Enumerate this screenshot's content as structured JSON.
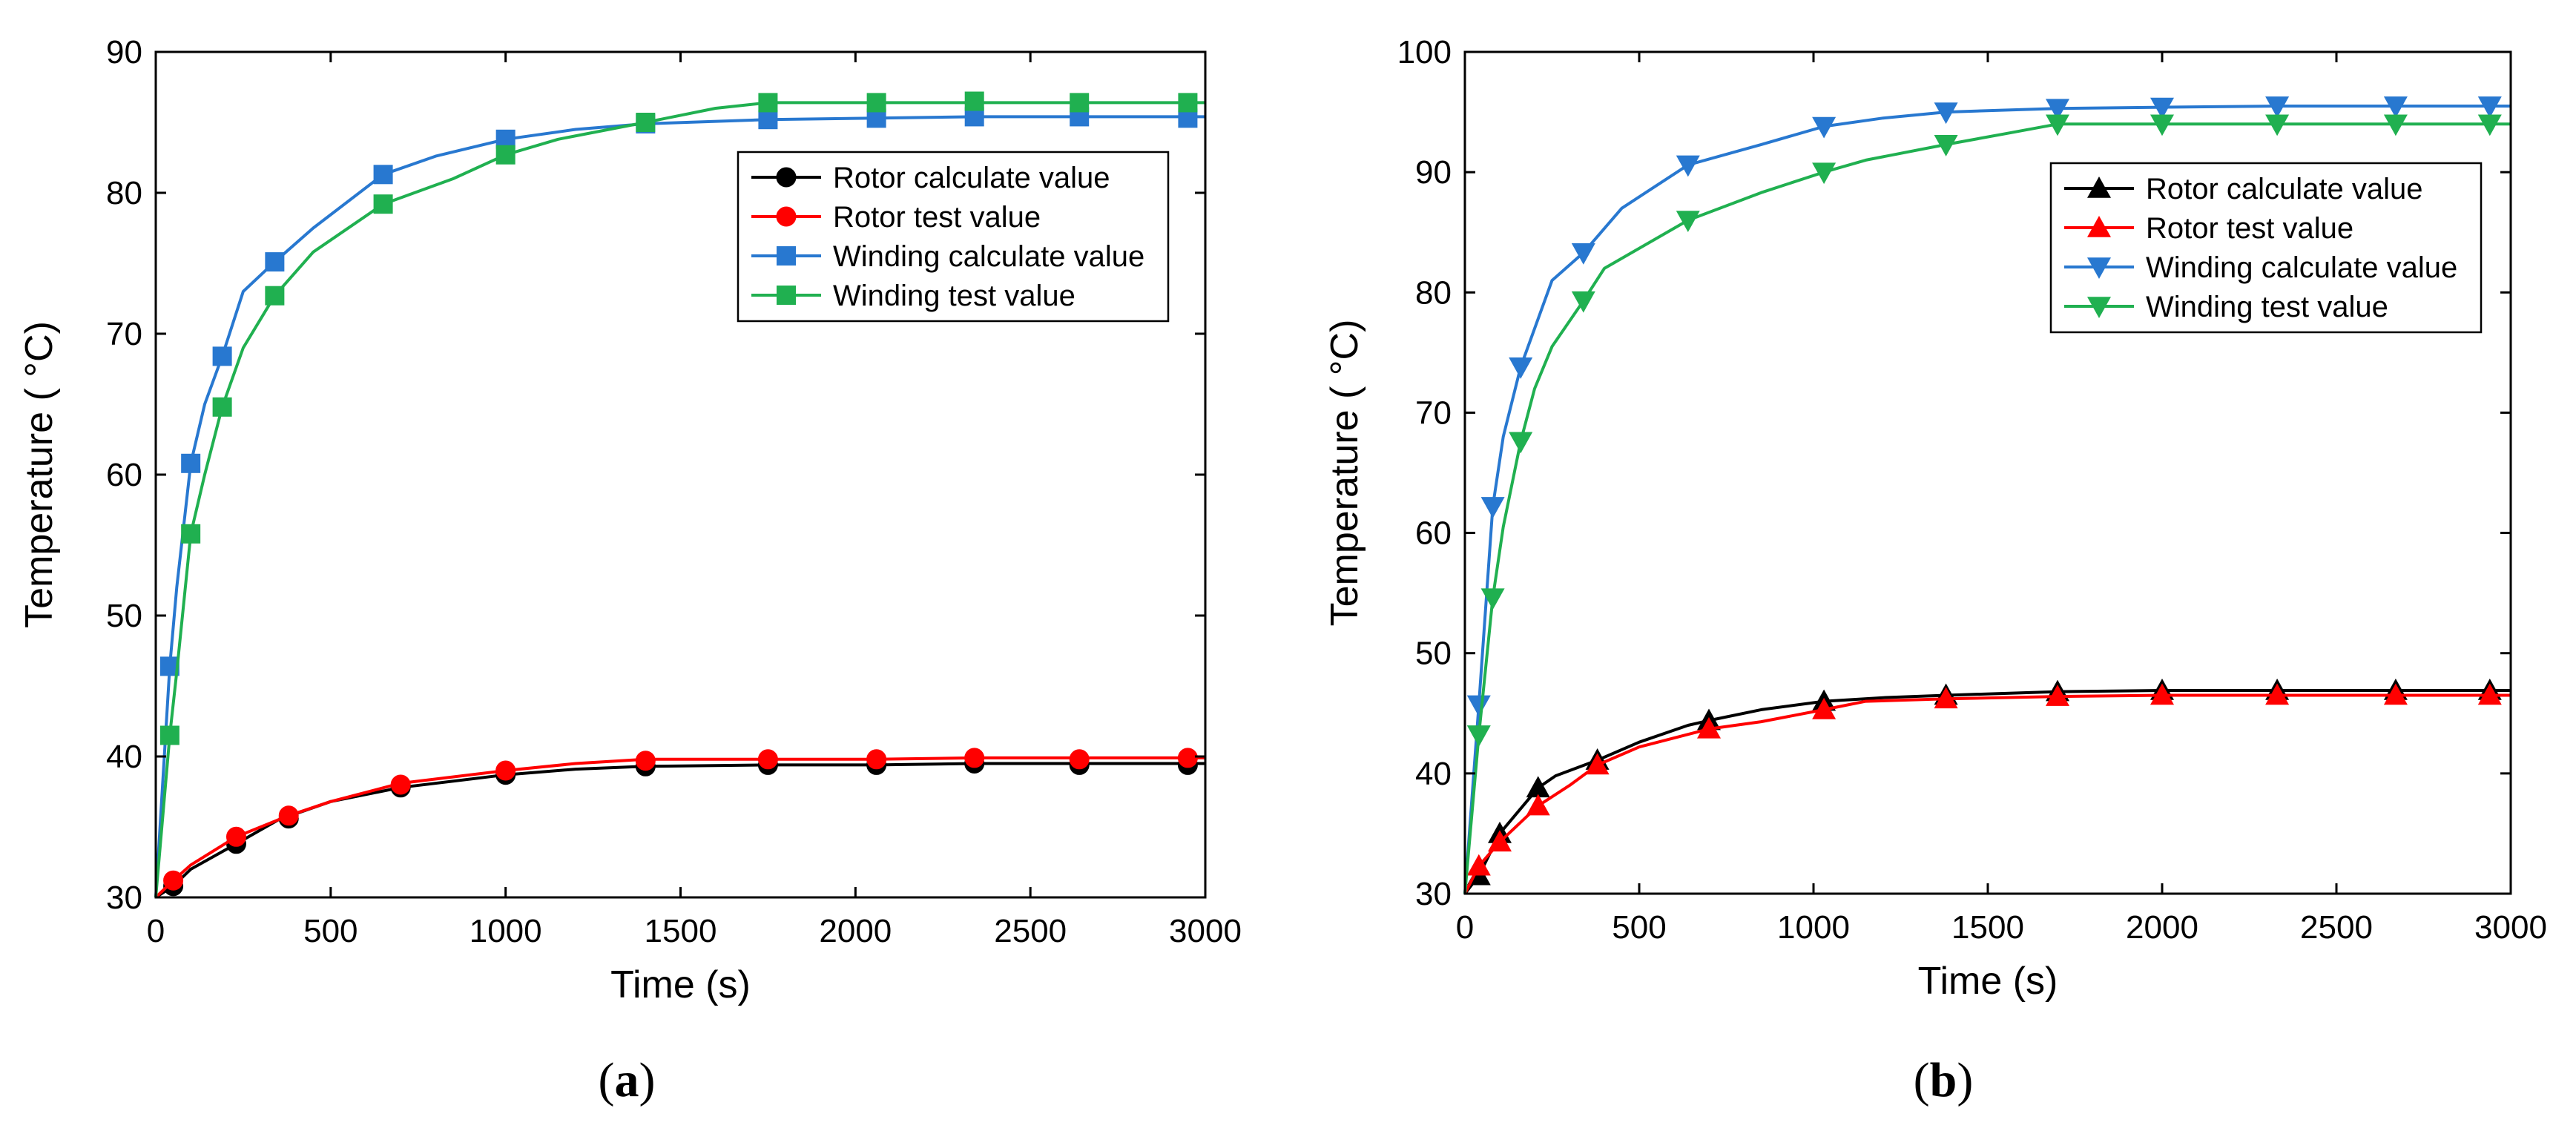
{
  "chart_data": [
    {
      "id": "a",
      "type": "line",
      "panel_label": {
        "open": "(",
        "letter": "a",
        "close": ")"
      },
      "xlabel": "Time (s)",
      "ylabel": "Temperature (  °C)",
      "xlim": [
        0,
        3000
      ],
      "ylim": [
        30,
        90
      ],
      "xticks": [
        0,
        500,
        1000,
        1500,
        2000,
        2500,
        3000
      ],
      "yticks": [
        30,
        40,
        50,
        60,
        70,
        80,
        90
      ],
      "grid": false,
      "legend_position": "top-right",
      "series": [
        {
          "name": "Rotor calculate value",
          "color": "#000000",
          "marker": "circle",
          "line": [
            [
              0,
              30
            ],
            [
              50,
              30.8
            ],
            [
              100,
              32.0
            ],
            [
              230,
              33.8
            ],
            [
              350,
              35.5
            ],
            [
              500,
              36.8
            ],
            [
              700,
              37.8
            ],
            [
              1000,
              38.7
            ],
            [
              1200,
              39.1
            ],
            [
              1400,
              39.3
            ],
            [
              1750,
              39.4
            ],
            [
              2060,
              39.4
            ],
            [
              2340,
              39.5
            ],
            [
              2640,
              39.5
            ],
            [
              3000,
              39.5
            ]
          ],
          "markers": [
            [
              50,
              30.8
            ],
            [
              230,
              33.8
            ],
            [
              380,
              35.6
            ],
            [
              700,
              37.8
            ],
            [
              1000,
              38.7
            ],
            [
              1400,
              39.3
            ],
            [
              1750,
              39.4
            ],
            [
              2060,
              39.4
            ],
            [
              2340,
              39.5
            ],
            [
              2640,
              39.4
            ],
            [
              2950,
              39.4
            ]
          ]
        },
        {
          "name": "Rotor test value",
          "color": "#ff0000",
          "marker": "circle",
          "line": [
            [
              0,
              30
            ],
            [
              50,
              31.2
            ],
            [
              100,
              32.3
            ],
            [
              230,
              34.3
            ],
            [
              380,
              35.8
            ],
            [
              500,
              36.8
            ],
            [
              700,
              38.1
            ],
            [
              1000,
              39.0
            ],
            [
              1200,
              39.5
            ],
            [
              1400,
              39.8
            ],
            [
              1750,
              39.8
            ],
            [
              2060,
              39.8
            ],
            [
              2340,
              39.9
            ],
            [
              2640,
              39.9
            ],
            [
              3000,
              39.9
            ]
          ],
          "markers": [
            [
              50,
              31.2
            ],
            [
              230,
              34.3
            ],
            [
              380,
              35.8
            ],
            [
              700,
              38.0
            ],
            [
              1000,
              39.0
            ],
            [
              1400,
              39.7
            ],
            [
              1750,
              39.8
            ],
            [
              2060,
              39.8
            ],
            [
              2340,
              39.9
            ],
            [
              2640,
              39.8
            ],
            [
              2950,
              39.9
            ]
          ]
        },
        {
          "name": "Winding calculate value",
          "color": "#2878d0",
          "marker": "square",
          "line": [
            [
              0,
              30
            ],
            [
              40,
              46.4
            ],
            [
              60,
              52.0
            ],
            [
              100,
              60.8
            ],
            [
              140,
              65.0
            ],
            [
              190,
              68.4
            ],
            [
              250,
              73.0
            ],
            [
              340,
              75.1
            ],
            [
              450,
              77.5
            ],
            [
              650,
              81.3
            ],
            [
              800,
              82.6
            ],
            [
              1000,
              83.8
            ],
            [
              1200,
              84.5
            ],
            [
              1400,
              84.9
            ],
            [
              1750,
              85.2
            ],
            [
              2060,
              85.3
            ],
            [
              2340,
              85.4
            ],
            [
              2640,
              85.4
            ],
            [
              3000,
              85.4
            ]
          ],
          "markers": [
            [
              40,
              46.4
            ],
            [
              100,
              60.8
            ],
            [
              190,
              68.4
            ],
            [
              340,
              75.1
            ],
            [
              650,
              81.3
            ],
            [
              1000,
              83.8
            ],
            [
              1400,
              84.9
            ],
            [
              1750,
              85.2
            ],
            [
              2060,
              85.3
            ],
            [
              2340,
              85.4
            ],
            [
              2640,
              85.4
            ],
            [
              2950,
              85.3
            ]
          ]
        },
        {
          "name": "Winding test value",
          "color": "#20b050",
          "marker": "square",
          "line": [
            [
              0,
              30
            ],
            [
              40,
              41.5
            ],
            [
              60,
              46.0
            ],
            [
              100,
              55.8
            ],
            [
              140,
              60.0
            ],
            [
              190,
              64.8
            ],
            [
              250,
              69.0
            ],
            [
              340,
              72.7
            ],
            [
              450,
              75.8
            ],
            [
              650,
              79.2
            ],
            [
              850,
              81.0
            ],
            [
              1000,
              82.7
            ],
            [
              1150,
              83.8
            ],
            [
              1400,
              85.0
            ],
            [
              1600,
              86.0
            ],
            [
              1750,
              86.4
            ],
            [
              2060,
              86.4
            ],
            [
              2340,
              86.4
            ],
            [
              2640,
              86.4
            ],
            [
              3000,
              86.4
            ]
          ],
          "markers": [
            [
              40,
              41.5
            ],
            [
              100,
              55.8
            ],
            [
              190,
              64.8
            ],
            [
              340,
              72.7
            ],
            [
              650,
              79.2
            ],
            [
              1000,
              82.7
            ],
            [
              1400,
              85.0
            ],
            [
              1750,
              86.4
            ],
            [
              2060,
              86.4
            ],
            [
              2340,
              86.5
            ],
            [
              2640,
              86.4
            ],
            [
              2950,
              86.4
            ]
          ]
        }
      ]
    },
    {
      "id": "b",
      "type": "line",
      "panel_label": {
        "open": "(",
        "letter": "b",
        "close": ")"
      },
      "xlabel": "Time (s)",
      "ylabel": "Temperature (  °C)",
      "xlim": [
        0,
        3000
      ],
      "ylim": [
        30,
        100
      ],
      "xticks": [
        0,
        500,
        1000,
        1500,
        2000,
        2500,
        3000
      ],
      "yticks": [
        30,
        40,
        50,
        60,
        70,
        80,
        90,
        100
      ],
      "grid": false,
      "legend_position": "top-right",
      "series": [
        {
          "name": "Rotor calculate value",
          "color": "#000000",
          "marker": "triangle-up",
          "line": [
            [
              0,
              30
            ],
            [
              40,
              31.5
            ],
            [
              100,
              35.0
            ],
            [
              210,
              38.8
            ],
            [
              260,
              39.8
            ],
            [
              380,
              41.1
            ],
            [
              500,
              42.6
            ],
            [
              640,
              44.0
            ],
            [
              700,
              44.4
            ],
            [
              850,
              45.3
            ],
            [
              1030,
              46.0
            ],
            [
              1200,
              46.3
            ],
            [
              1380,
              46.5
            ],
            [
              1700,
              46.8
            ],
            [
              2000,
              46.9
            ],
            [
              2330,
              46.9
            ],
            [
              2670,
              46.9
            ],
            [
              3000,
              46.9
            ]
          ],
          "markers": [
            [
              40,
              31.5
            ],
            [
              100,
              35.0
            ],
            [
              210,
              38.8
            ],
            [
              380,
              41.1
            ],
            [
              700,
              44.4
            ],
            [
              1030,
              46.0
            ],
            [
              1380,
              46.5
            ],
            [
              1700,
              46.8
            ],
            [
              2000,
              46.9
            ],
            [
              2330,
              46.9
            ],
            [
              2670,
              46.9
            ],
            [
              2940,
              46.9
            ]
          ]
        },
        {
          "name": "Rotor test value",
          "color": "#ff0000",
          "marker": "triangle-up",
          "line": [
            [
              0,
              30
            ],
            [
              40,
              32.3
            ],
            [
              100,
              34.3
            ],
            [
              210,
              37.3
            ],
            [
              300,
              39.0
            ],
            [
              380,
              40.7
            ],
            [
              500,
              42.2
            ],
            [
              700,
              43.7
            ],
            [
              850,
              44.3
            ],
            [
              1030,
              45.3
            ],
            [
              1150,
              46.0
            ],
            [
              1380,
              46.2
            ],
            [
              1700,
              46.4
            ],
            [
              2000,
              46.5
            ],
            [
              2330,
              46.5
            ],
            [
              2670,
              46.5
            ],
            [
              3000,
              46.5
            ]
          ],
          "markers": [
            [
              40,
              32.3
            ],
            [
              100,
              34.3
            ],
            [
              210,
              37.3
            ],
            [
              380,
              40.7
            ],
            [
              700,
              43.7
            ],
            [
              1030,
              45.3
            ],
            [
              1380,
              46.2
            ],
            [
              1700,
              46.4
            ],
            [
              2000,
              46.5
            ],
            [
              2330,
              46.5
            ],
            [
              2670,
              46.5
            ],
            [
              2940,
              46.5
            ]
          ]
        },
        {
          "name": "Winding calculate value",
          "color": "#2878d0",
          "marker": "triangle-down",
          "line": [
            [
              0,
              30
            ],
            [
              40,
              45.7
            ],
            [
              80,
              62.2
            ],
            [
              110,
              68.0
            ],
            [
              160,
              73.8
            ],
            [
              200,
              77.0
            ],
            [
              250,
              81.0
            ],
            [
              340,
              83.3
            ],
            [
              450,
              87.0
            ],
            [
              640,
              90.6
            ],
            [
              850,
              92.3
            ],
            [
              1030,
              93.8
            ],
            [
              1200,
              94.5
            ],
            [
              1380,
              95.0
            ],
            [
              1700,
              95.3
            ],
            [
              2000,
              95.4
            ],
            [
              2330,
              95.5
            ],
            [
              2670,
              95.5
            ],
            [
              3000,
              95.5
            ]
          ],
          "markers": [
            [
              40,
              45.7
            ],
            [
              80,
              62.2
            ],
            [
              160,
              73.8
            ],
            [
              340,
              83.3
            ],
            [
              640,
              90.6
            ],
            [
              1030,
              93.8
            ],
            [
              1380,
              95.0
            ],
            [
              1700,
              95.3
            ],
            [
              2000,
              95.4
            ],
            [
              2330,
              95.5
            ],
            [
              2670,
              95.5
            ],
            [
              2940,
              95.5
            ]
          ]
        },
        {
          "name": "Winding test value",
          "color": "#20b050",
          "marker": "triangle-down",
          "line": [
            [
              0,
              30
            ],
            [
              40,
              43.2
            ],
            [
              80,
              54.6
            ],
            [
              110,
              60.5
            ],
            [
              160,
              67.6
            ],
            [
              200,
              72.0
            ],
            [
              250,
              75.5
            ],
            [
              340,
              79.3
            ],
            [
              400,
              82.0
            ],
            [
              640,
              86.0
            ],
            [
              850,
              88.3
            ],
            [
              1030,
              90.0
            ],
            [
              1150,
              91.0
            ],
            [
              1380,
              92.3
            ],
            [
              1550,
              93.2
            ],
            [
              1700,
              94.0
            ],
            [
              2000,
              94.0
            ],
            [
              2330,
              94.0
            ],
            [
              2670,
              94.0
            ],
            [
              3000,
              94.0
            ]
          ],
          "markers": [
            [
              40,
              43.2
            ],
            [
              80,
              54.6
            ],
            [
              160,
              67.6
            ],
            [
              340,
              79.3
            ],
            [
              640,
              86.0
            ],
            [
              1030,
              90.0
            ],
            [
              1380,
              92.3
            ],
            [
              1700,
              94.0
            ],
            [
              2000,
              94.0
            ],
            [
              2330,
              94.0
            ],
            [
              2670,
              94.0
            ],
            [
              2940,
              94.0
            ]
          ]
        }
      ]
    }
  ]
}
